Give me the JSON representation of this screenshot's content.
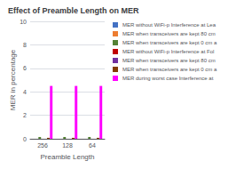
{
  "chart_data": {
    "type": "bar",
    "title": "Effect of Preamble Length on MER",
    "xlabel": "Preamble Length",
    "ylabel": "MER in percentage",
    "categories": [
      "256",
      "128",
      "64"
    ],
    "series": [
      {
        "name": "MER without WiFi-p Interference at Lea",
        "color": "#4472c4",
        "values": [
          0,
          0,
          0
        ]
      },
      {
        "name": "MER when transceivers are kept 80 cm",
        "color": "#ed7d31",
        "values": [
          0,
          0,
          0
        ]
      },
      {
        "name": "MER when transceivers are kept 0 cm a",
        "color": "#548235",
        "values": [
          0.15,
          0.15,
          0.15
        ]
      },
      {
        "name": "MER without WiFi-p Interference at Fol",
        "color": "#c00000",
        "values": [
          0,
          0,
          0
        ]
      },
      {
        "name": "MER when transceivers are kept 80 cm ",
        "color": "#7030a0",
        "values": [
          0,
          0,
          0
        ]
      },
      {
        "name": "MER when transceivers are kept 0 cm a",
        "color": "#833c00",
        "values": [
          0.08,
          0.08,
          0.08
        ]
      },
      {
        "name": "MER during worst case Interference at",
        "color": "#ff00ff",
        "values": [
          4.5,
          4.5,
          4.5
        ]
      }
    ],
    "ylim": [
      0,
      10
    ],
    "yticks": [
      0,
      2,
      4,
      6,
      8,
      10
    ],
    "grid": true,
    "legend": "upper right"
  }
}
